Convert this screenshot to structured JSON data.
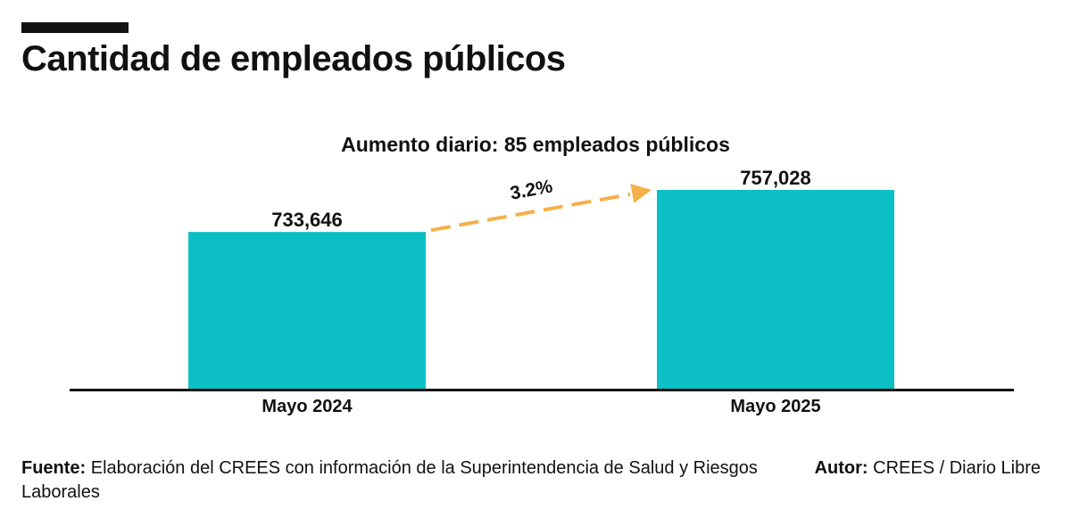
{
  "title": "Cantidad de empleados públicos",
  "chart_data": {
    "type": "bar",
    "subtitle": "Aumento diario: 85 empleados públicos",
    "categories": [
      "Mayo 2024",
      "Mayo 2025"
    ],
    "values": [
      733646,
      757028
    ],
    "value_labels": [
      "733,646",
      "757,028"
    ],
    "annotation": "3.2%",
    "ylim": [
      0,
      757028
    ],
    "grid": false,
    "bar_color": "#0bbfc4",
    "arrow_color": "#f5b04a"
  },
  "footer": {
    "source_label": "Fuente:",
    "source_text": " Elaboración del CREES con información de la Superintendencia de Salud y Riesgos Laborales",
    "author_label": "Autor:",
    "author_text": " CREES / Diario Libre"
  }
}
